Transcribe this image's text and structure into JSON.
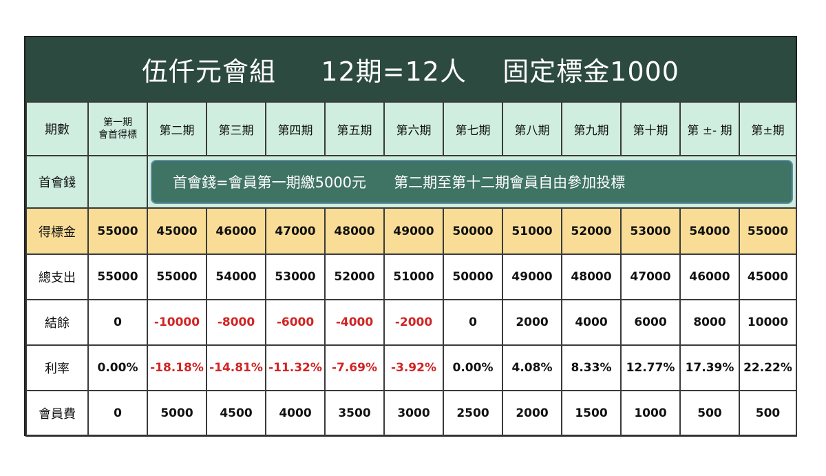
{
  "title": "伍仟元會組     12期=12人    固定標金1000",
  "header": {
    "label": "期數",
    "first_line1": "第一期",
    "first_line2": "會首得標",
    "periods": [
      "第二期",
      "第三期",
      "第四期",
      "第五期",
      "第六期",
      "第七期",
      "第八期",
      "第九期",
      "第十期",
      "第 ±- 期",
      "第±期"
    ]
  },
  "row_head_money": {
    "label": "首會錢",
    "note": "首會錢=會員第一期繳5000元      第二期至第十二期會員自由參加投標"
  },
  "rows": [
    {
      "label": "得標金",
      "values": [
        "55000",
        "45000",
        "46000",
        "47000",
        "48000",
        "49000",
        "50000",
        "51000",
        "52000",
        "53000",
        "54000",
        "55000"
      ]
    },
    {
      "label": "總支出",
      "values": [
        "55000",
        "55000",
        "54000",
        "53000",
        "52000",
        "51000",
        "50000",
        "49000",
        "48000",
        "47000",
        "46000",
        "45000"
      ]
    },
    {
      "label": "結餘",
      "values": [
        "0",
        "-10000",
        "-8000",
        "-6000",
        "-4000",
        "-2000",
        "0",
        "2000",
        "4000",
        "6000",
        "8000",
        "10000"
      ]
    },
    {
      "label": "利率",
      "values": [
        "0.00%",
        "-18.18%",
        "-14.81%",
        "-11.32%",
        "-7.69%",
        "-3.92%",
        "0.00%",
        "4.08%",
        "8.33%",
        "12.77%",
        "17.39%",
        "22.22%"
      ]
    },
    {
      "label": "會員費",
      "values": [
        "0",
        "5000",
        "4500",
        "4000",
        "3500",
        "3000",
        "2500",
        "2000",
        "1500",
        "1000",
        "500",
        "500"
      ]
    }
  ],
  "colors": {
    "title_bg": "#2c4a40",
    "header_bg": "#cfeee0",
    "bid_row_bg": "#f9dd97",
    "note_bg": "#3f7363",
    "negative": "#d12424"
  }
}
